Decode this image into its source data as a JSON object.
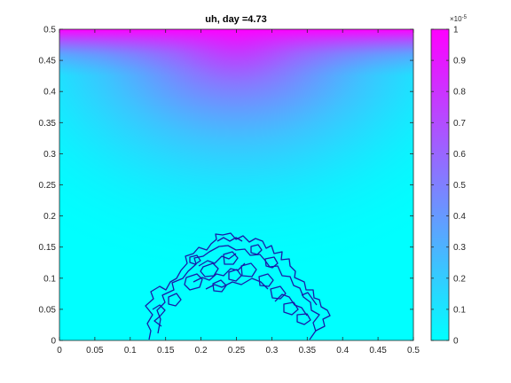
{
  "chart_data": {
    "type": "heatmap",
    "title": "uh, day =4.73",
    "x": {
      "lim": [
        0,
        0.5
      ],
      "ticks": [
        0,
        0.05,
        0.1,
        0.15,
        0.2,
        0.25,
        0.3,
        0.35,
        0.4,
        0.45,
        0.5
      ],
      "tick_labels": [
        "0",
        "0.05",
        "0.1",
        "0.15",
        "0.2",
        "0.25",
        "0.3",
        "0.35",
        "0.4",
        "0.45",
        "0.5"
      ]
    },
    "y": {
      "lim": [
        0,
        0.5
      ],
      "ticks": [
        0,
        0.05,
        0.1,
        0.15,
        0.2,
        0.25,
        0.3,
        0.35,
        0.4,
        0.45,
        0.5
      ],
      "tick_labels": [
        "0",
        "0.05",
        "0.1",
        "0.15",
        "0.2",
        "0.25",
        "0.3",
        "0.35",
        "0.4",
        "0.45",
        "0.5"
      ]
    },
    "colorbar": {
      "lim": [
        0,
        1
      ],
      "ticks": [
        0,
        0.1,
        0.2,
        0.3,
        0.4,
        0.5,
        0.6,
        0.7,
        0.8,
        0.9,
        1
      ],
      "tick_labels": [
        "0",
        "0.1",
        "0.2",
        "0.3",
        "0.4",
        "0.5",
        "0.6",
        "0.7",
        "0.8",
        "0.9",
        "1"
      ],
      "exponent_base": "×10",
      "exponent_power": "-5",
      "colormap": "cool",
      "colors": {
        "low": "#00ffff",
        "high": "#ff00ff"
      }
    },
    "field": "value rises sharply toward top edge y=0.5, highest at center top, cyan near bottom",
    "contour": {
      "color": "#1a1aa8",
      "region_x": [
        0.14,
        0.385
      ],
      "region_y": [
        0,
        0.17
      ],
      "description": "irregular contour of small values forming an arch near the bottom center"
    },
    "grid": false
  }
}
